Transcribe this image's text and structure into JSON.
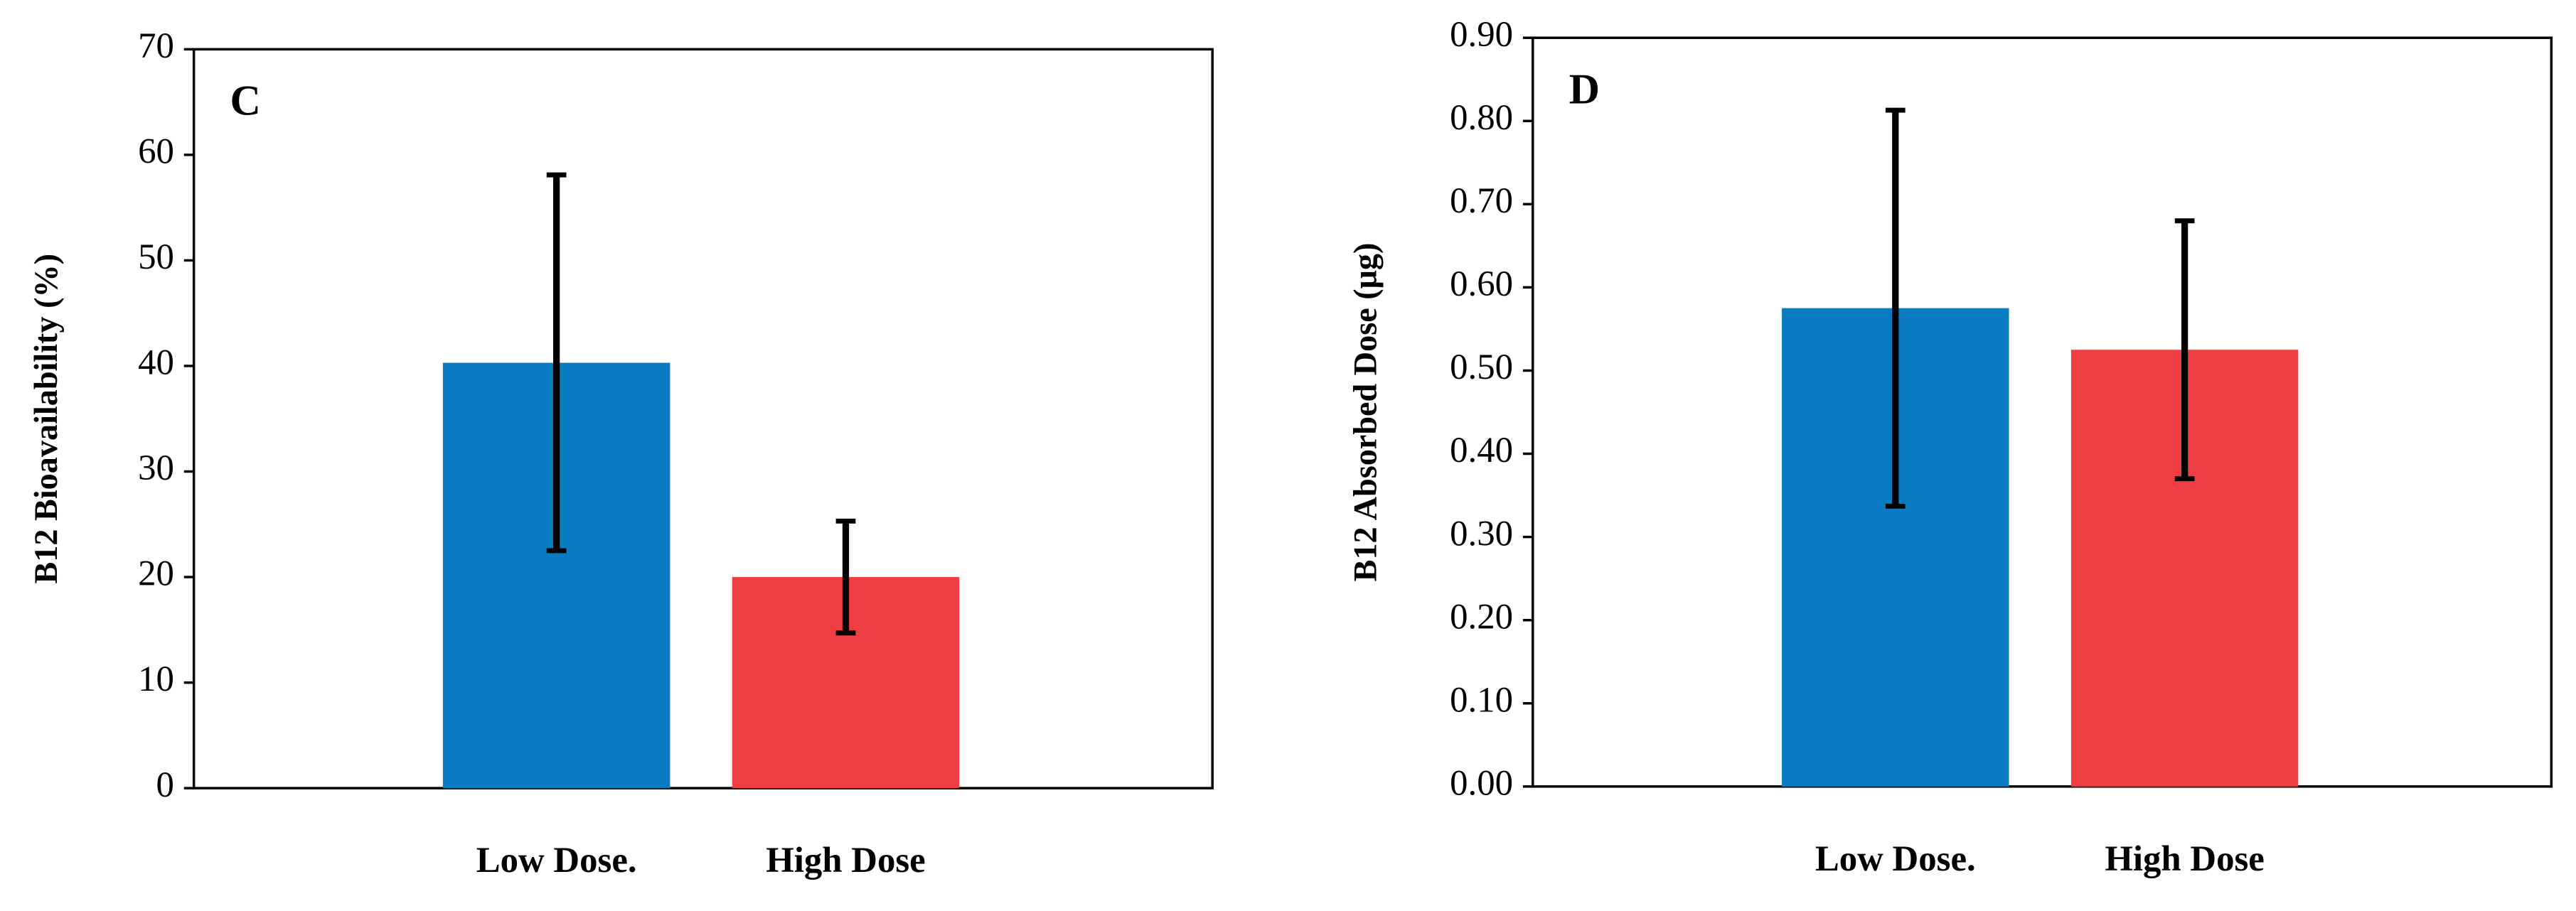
{
  "chart_data": [
    {
      "type": "bar",
      "panel_label": "C",
      "y_label": "B12 Bioavailability (%)",
      "categories": [
        "Low Dose.",
        "High Dose"
      ],
      "values": [
        40.3,
        20.0
      ],
      "errors": [
        17.8,
        5.3
      ],
      "colors": [
        "#0a7bc1",
        "#ef3e42"
      ],
      "ylim": [
        0,
        70
      ],
      "yticks": [
        0,
        10,
        20,
        30,
        40,
        50,
        60,
        70
      ]
    },
    {
      "type": "bar",
      "panel_label": "D",
      "y_label": "B12 Absorbed Dose (μg)",
      "categories": [
        "Low Dose.",
        "High Dose"
      ],
      "values": [
        0.575,
        0.525
      ],
      "errors": [
        0.238,
        0.155
      ],
      "colors": [
        "#0a7bc1",
        "#ef3e42"
      ],
      "ylim": [
        0,
        0.9
      ],
      "yticks": [
        {
          "value": 0,
          "label": "0.00"
        },
        {
          "value": 0.1,
          "label": "0.10"
        },
        {
          "value": 0.2,
          "label": "0.20"
        },
        {
          "value": 0.3,
          "label": "0.30"
        },
        {
          "value": 0.4,
          "label": "0.40"
        },
        {
          "value": 0.5,
          "label": "0.50"
        },
        {
          "value": 0.6,
          "label": "0.60"
        },
        {
          "value": 0.7,
          "label": "0.70"
        },
        {
          "value": 0.8,
          "label": "0.80"
        },
        {
          "value": 0.9,
          "label": "0.90"
        }
      ]
    }
  ]
}
